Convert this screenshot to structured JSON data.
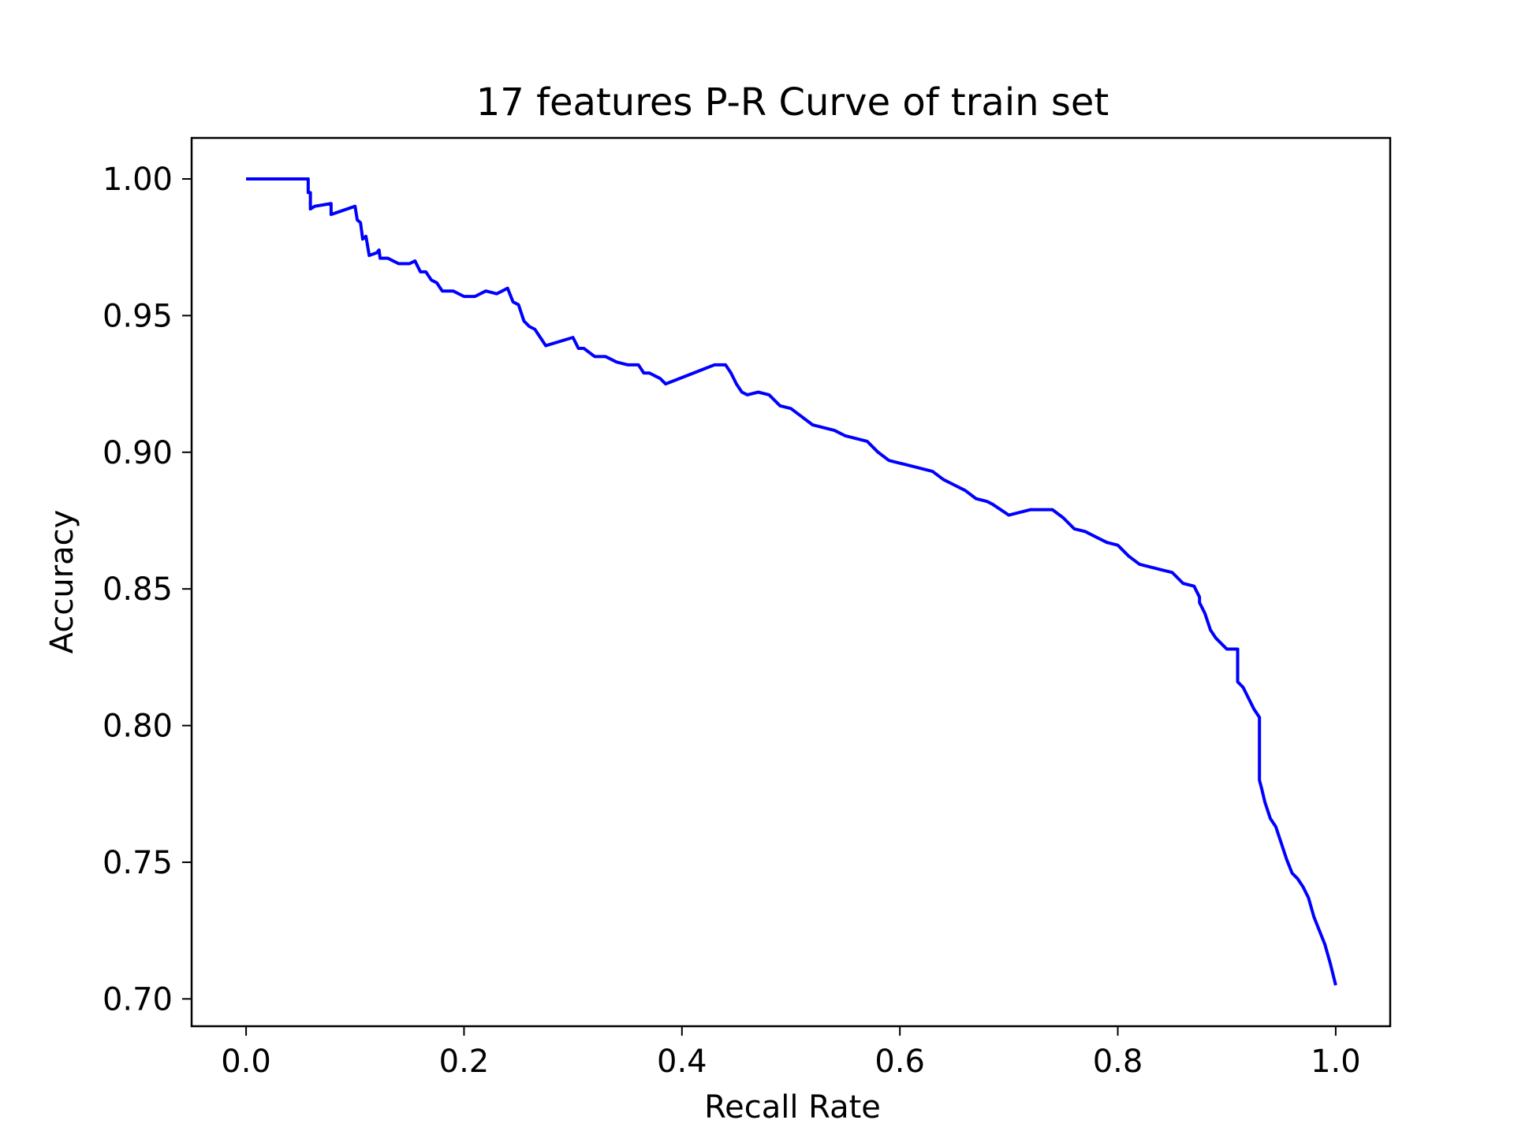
{
  "chart_data": {
    "type": "line",
    "title": "17 features P-R Curve of train set",
    "xlabel": "Recall Rate",
    "ylabel": "Accuracy",
    "xlim": [
      -0.05,
      1.05
    ],
    "ylim": [
      0.69,
      1.015
    ],
    "xticks": [
      0.0,
      0.2,
      0.4,
      0.6,
      0.8,
      1.0
    ],
    "xtick_labels": [
      "0.0",
      "0.2",
      "0.4",
      "0.6",
      "0.8",
      "1.0"
    ],
    "yticks": [
      0.7,
      0.75,
      0.8,
      0.85,
      0.9,
      0.95,
      1.0
    ],
    "ytick_labels": [
      "0.70",
      "0.75",
      "0.80",
      "0.85",
      "0.90",
      "0.95",
      "1.00"
    ],
    "grid": false,
    "legend": false,
    "series": [
      {
        "color": "#0000ff",
        "x": [
          0.0,
          0.057,
          0.057,
          0.059,
          0.059,
          0.063,
          0.078,
          0.078,
          0.1,
          0.102,
          0.105,
          0.107,
          0.11,
          0.113,
          0.12,
          0.122,
          0.123,
          0.13,
          0.135,
          0.14,
          0.145,
          0.15,
          0.155,
          0.16,
          0.165,
          0.17,
          0.175,
          0.18,
          0.185,
          0.19,
          0.2,
          0.21,
          0.22,
          0.23,
          0.24,
          0.245,
          0.25,
          0.255,
          0.26,
          0.265,
          0.27,
          0.275,
          0.3,
          0.305,
          0.31,
          0.32,
          0.33,
          0.34,
          0.35,
          0.36,
          0.365,
          0.37,
          0.38,
          0.385,
          0.43,
          0.44,
          0.445,
          0.45,
          0.455,
          0.46,
          0.47,
          0.48,
          0.49,
          0.5,
          0.51,
          0.52,
          0.53,
          0.54,
          0.55,
          0.56,
          0.57,
          0.58,
          0.59,
          0.6,
          0.61,
          0.62,
          0.63,
          0.64,
          0.65,
          0.66,
          0.67,
          0.68,
          0.685,
          0.7,
          0.71,
          0.72,
          0.73,
          0.74,
          0.75,
          0.76,
          0.77,
          0.78,
          0.79,
          0.8,
          0.81,
          0.82,
          0.83,
          0.84,
          0.85,
          0.86,
          0.87,
          0.875,
          0.875,
          0.88,
          0.885,
          0.89,
          0.9,
          0.91,
          0.91,
          0.915,
          0.92,
          0.925,
          0.93,
          0.93,
          0.932,
          0.935,
          0.94,
          0.945,
          0.95,
          0.955,
          0.96,
          0.965,
          0.97,
          0.975,
          0.98,
          0.985,
          0.99,
          0.995,
          1.0
        ],
        "y": [
          1.0,
          1.0,
          0.995,
          0.995,
          0.989,
          0.99,
          0.991,
          0.987,
          0.99,
          0.985,
          0.984,
          0.978,
          0.979,
          0.972,
          0.973,
          0.974,
          0.971,
          0.971,
          0.97,
          0.969,
          0.969,
          0.969,
          0.97,
          0.966,
          0.966,
          0.963,
          0.962,
          0.959,
          0.959,
          0.959,
          0.957,
          0.957,
          0.959,
          0.958,
          0.96,
          0.955,
          0.954,
          0.948,
          0.946,
          0.945,
          0.942,
          0.939,
          0.942,
          0.938,
          0.938,
          0.935,
          0.935,
          0.933,
          0.932,
          0.932,
          0.929,
          0.929,
          0.927,
          0.925,
          0.932,
          0.932,
          0.929,
          0.925,
          0.922,
          0.921,
          0.922,
          0.921,
          0.917,
          0.916,
          0.913,
          0.91,
          0.909,
          0.908,
          0.906,
          0.905,
          0.904,
          0.9,
          0.897,
          0.896,
          0.895,
          0.894,
          0.893,
          0.89,
          0.888,
          0.886,
          0.883,
          0.882,
          0.881,
          0.877,
          0.878,
          0.879,
          0.879,
          0.879,
          0.876,
          0.872,
          0.871,
          0.869,
          0.867,
          0.866,
          0.862,
          0.859,
          0.858,
          0.857,
          0.856,
          0.852,
          0.851,
          0.847,
          0.845,
          0.841,
          0.835,
          0.832,
          0.828,
          0.828,
          0.816,
          0.814,
          0.81,
          0.806,
          0.803,
          0.78,
          0.777,
          0.772,
          0.766,
          0.763,
          0.757,
          0.751,
          0.746,
          0.744,
          0.741,
          0.737,
          0.73,
          0.725,
          0.72,
          0.713,
          0.705
        ]
      }
    ]
  }
}
